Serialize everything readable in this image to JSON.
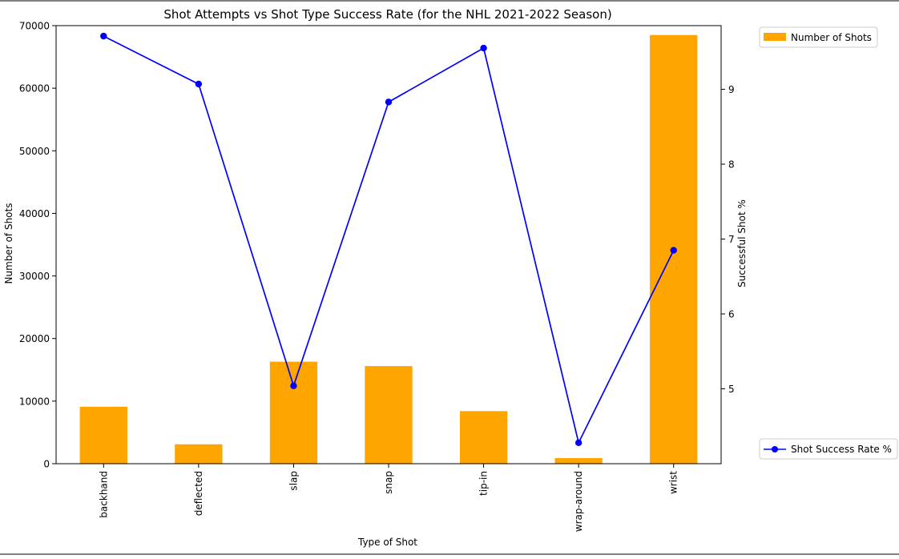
{
  "chart_data": {
    "type": "bar+line",
    "title": "Shot Attempts vs Shot Type Success Rate (for the NHL 2021-2022 Season)",
    "xlabel": "Type of Shot",
    "ylabel_left": "Number of Shots",
    "ylabel_right": "Successful Shot %",
    "categories": [
      "backhand",
      "deflected",
      "slap",
      "snap",
      "tip-in",
      "wrap-around",
      "wrist"
    ],
    "bar_series": {
      "name": "Number of Shots",
      "color": "#FFA500",
      "values": [
        9100,
        3100,
        16300,
        15600,
        8400,
        900,
        68500
      ]
    },
    "line_series": {
      "name": "Shot Success Rate %",
      "color": "#0000FF",
      "values": [
        9.71,
        9.07,
        5.04,
        8.83,
        9.55,
        4.28,
        6.85
      ]
    },
    "ylim_left": [
      0,
      70000
    ],
    "yticks_left": [
      0,
      10000,
      20000,
      30000,
      40000,
      50000,
      60000,
      70000
    ],
    "ylim_right": [
      4.0,
      9.85
    ],
    "yticks_right": [
      5,
      6,
      7,
      8,
      9
    ],
    "grid": false,
    "legend_bar_placement": "top-right outside",
    "legend_line_placement": "bottom-right outside"
  }
}
